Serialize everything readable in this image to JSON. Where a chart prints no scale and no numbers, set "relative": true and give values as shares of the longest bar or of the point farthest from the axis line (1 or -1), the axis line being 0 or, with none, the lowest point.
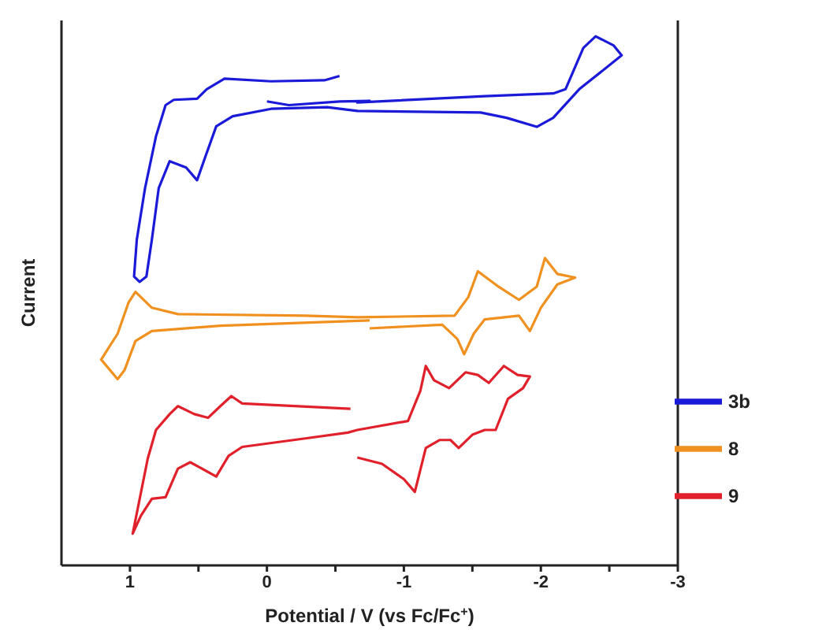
{
  "chart_data": {
    "type": "line",
    "xlabel": "Potential / V (vs Fc/Fc$^{+}$)",
    "ylabel": "Current",
    "relative": true,
    "legend": "bottom right",
    "xlim": [
      1.5,
      -3
    ],
    "xticks": [
      1,
      {
        "value": 0.5,
        "label": null
      },
      0,
      {
        "value": -0.5,
        "label": null
      },
      -1,
      {
        "value": -1.5,
        "label": null
      },
      -2,
      {
        "value": -2.5,
        "label": null
      },
      -3
    ],
    "series": [
      {
        "name": "3b",
        "color": "#1a1ad8",
        "x": [
          -0.53,
          -0.42,
          -0.03,
          0.31,
          0.44,
          0.51,
          0.68,
          0.74,
          0.81,
          0.89,
          0.95,
          0.97,
          0.93,
          0.88,
          0.84,
          0.79,
          0.71,
          0.59,
          0.51,
          0.45,
          0.37,
          0.25,
          -0.03,
          -0.44,
          -0.66,
          -1.56,
          -1.75,
          -1.97,
          -2.09,
          -2.28,
          -2.59,
          -2.53,
          -2.4,
          -2.31,
          -2.18,
          -2.09,
          -1.59,
          -0.66,
          -0.75,
          -0.53,
          -0.16,
          0.0
        ],
        "values": [
          0.925,
          0.917,
          0.915,
          0.92,
          0.9,
          0.882,
          0.88,
          0.87,
          0.811,
          0.713,
          0.616,
          0.546,
          0.536,
          0.546,
          0.616,
          0.713,
          0.764,
          0.752,
          0.728,
          0.772,
          0.83,
          0.849,
          0.863,
          0.866,
          0.859,
          0.856,
          0.846,
          0.829,
          0.846,
          0.9,
          0.964,
          0.983,
          1.0,
          0.978,
          0.9,
          0.892,
          0.887,
          0.875,
          0.878,
          0.877,
          0.87,
          0.877
        ]
      },
      {
        "name": "8",
        "color": "#f0901e",
        "x": [
          -0.75,
          -1.28,
          -1.39,
          -1.44,
          -1.51,
          -1.59,
          -1.84,
          -1.92,
          -2.0,
          -2.12,
          -2.25,
          -2.12,
          -2.03,
          -1.97,
          -1.84,
          -1.69,
          -1.54,
          -1.47,
          -1.37,
          -0.66,
          -0.28,
          0.65,
          0.84,
          0.96,
          1.01,
          1.09,
          1.21,
          1.09,
          1.04,
          0.96,
          0.84,
          0.34,
          -0.75
        ],
        "values": [
          0.448,
          0.455,
          0.428,
          0.399,
          0.438,
          0.465,
          0.472,
          0.443,
          0.487,
          0.531,
          0.544,
          0.551,
          0.581,
          0.527,
          0.502,
          0.527,
          0.556,
          0.507,
          0.472,
          0.469,
          0.472,
          0.475,
          0.487,
          0.517,
          0.497,
          0.438,
          0.389,
          0.352,
          0.369,
          0.424,
          0.443,
          0.453,
          0.463
        ]
      },
      {
        "name": "9",
        "color": "#e0202a",
        "x": [
          -0.61,
          0.18,
          0.26,
          0.34,
          0.43,
          0.53,
          0.65,
          0.71,
          0.81,
          0.87,
          0.98,
          0.92,
          0.84,
          0.74,
          0.65,
          0.56,
          0.37,
          0.28,
          0.18,
          -0.28,
          -0.59,
          -0.66,
          -1.03,
          -1.12,
          -1.16,
          -1.22,
          -1.33,
          -1.45,
          -1.54,
          -1.62,
          -1.73,
          -1.83,
          -1.92,
          -1.87,
          -1.76,
          -1.67,
          -1.59,
          -1.5,
          -1.4,
          -1.34,
          -1.26,
          -1.16,
          -1.08,
          -1.0,
          -0.84,
          -0.66
        ],
        "values": [
          0.296,
          0.306,
          0.32,
          0.301,
          0.279,
          0.286,
          0.301,
          0.286,
          0.256,
          0.202,
          0.06,
          0.094,
          0.126,
          0.129,
          0.183,
          0.195,
          0.168,
          0.207,
          0.224,
          0.24,
          0.251,
          0.256,
          0.273,
          0.33,
          0.377,
          0.35,
          0.335,
          0.365,
          0.36,
          0.345,
          0.377,
          0.36,
          0.357,
          0.335,
          0.315,
          0.256,
          0.256,
          0.247,
          0.222,
          0.237,
          0.237,
          0.222,
          0.139,
          0.163,
          0.192,
          0.204
        ]
      }
    ]
  }
}
